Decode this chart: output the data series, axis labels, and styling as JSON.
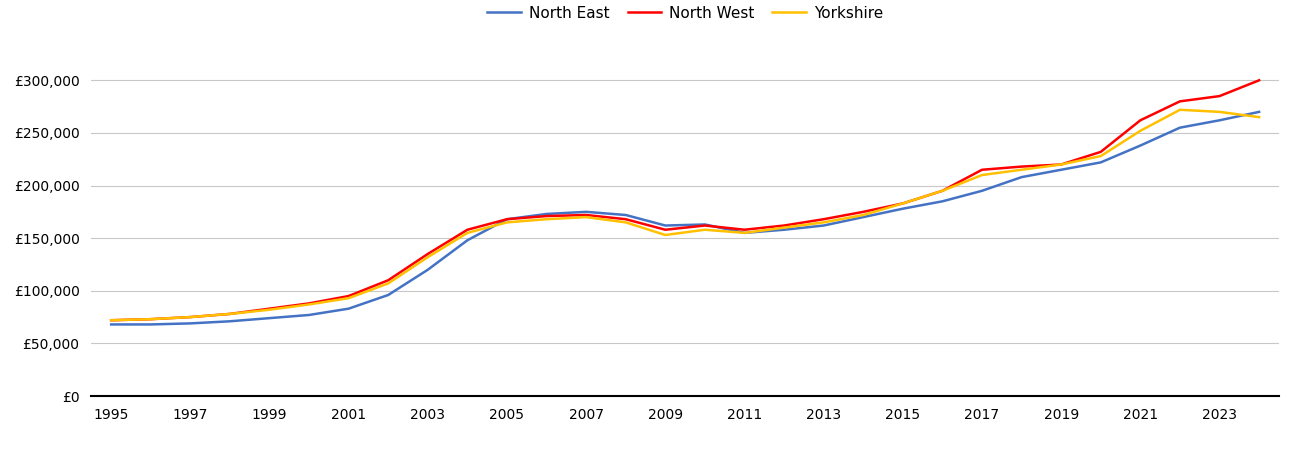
{
  "title": "",
  "legend_entries": [
    "North East",
    "North West",
    "Yorkshire"
  ],
  "colors": {
    "north_east": "#4472C4",
    "north_west": "#FF0000",
    "yorkshire": "#FFC000"
  },
  "years": [
    1995,
    1996,
    1997,
    1998,
    1999,
    2000,
    2001,
    2002,
    2003,
    2004,
    2005,
    2006,
    2007,
    2008,
    2009,
    2010,
    2011,
    2012,
    2013,
    2014,
    2015,
    2016,
    2017,
    2018,
    2019,
    2020,
    2021,
    2022,
    2023,
    2024
  ],
  "north_east": [
    68000,
    68000,
    69000,
    71000,
    74000,
    77000,
    83000,
    96000,
    120000,
    148000,
    168000,
    173000,
    175000,
    172000,
    162000,
    163000,
    155000,
    158000,
    162000,
    170000,
    178000,
    185000,
    195000,
    208000,
    215000,
    222000,
    238000,
    255000,
    262000,
    270000
  ],
  "north_west": [
    72000,
    73000,
    75000,
    78000,
    83000,
    88000,
    95000,
    110000,
    135000,
    158000,
    168000,
    171000,
    172000,
    168000,
    158000,
    162000,
    158000,
    162000,
    168000,
    175000,
    183000,
    195000,
    215000,
    218000,
    220000,
    232000,
    262000,
    280000,
    285000,
    300000
  ],
  "yorkshire": [
    72000,
    73000,
    75000,
    78000,
    82000,
    87000,
    93000,
    107000,
    132000,
    155000,
    165000,
    168000,
    170000,
    165000,
    153000,
    158000,
    155000,
    160000,
    165000,
    172000,
    183000,
    195000,
    210000,
    215000,
    220000,
    228000,
    252000,
    272000,
    270000,
    265000
  ],
  "ylim": [
    0,
    325000
  ],
  "yticks": [
    0,
    50000,
    100000,
    150000,
    200000,
    250000,
    300000
  ],
  "background_color": "#ffffff",
  "grid_color": "#c8c8c8",
  "line_width": 1.8,
  "tick_fontsize": 10,
  "legend_fontsize": 11
}
